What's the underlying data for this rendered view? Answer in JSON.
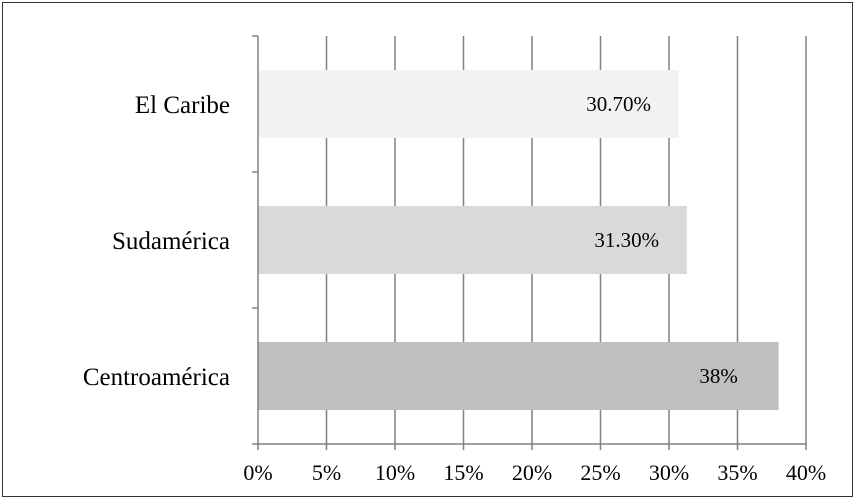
{
  "chart_data": {
    "type": "bar",
    "orientation": "horizontal",
    "categories": [
      "El Caribe",
      "Sudamérica",
      "Centroamérica"
    ],
    "values": [
      30.7,
      31.3,
      38
    ],
    "value_labels": [
      "30.70%",
      "31.30%",
      "38%"
    ],
    "colors": [
      "#f2f2f2",
      "#d9d9d9",
      "#bfbfbf"
    ],
    "xlim": [
      0,
      40
    ],
    "xticks": [
      0,
      5,
      10,
      15,
      20,
      25,
      30,
      35,
      40
    ],
    "xtick_labels": [
      "0%",
      "5%",
      "10%",
      "15%",
      "20%",
      "25%",
      "30%",
      "35%",
      "40%"
    ],
    "grid": true,
    "legend": "none"
  }
}
